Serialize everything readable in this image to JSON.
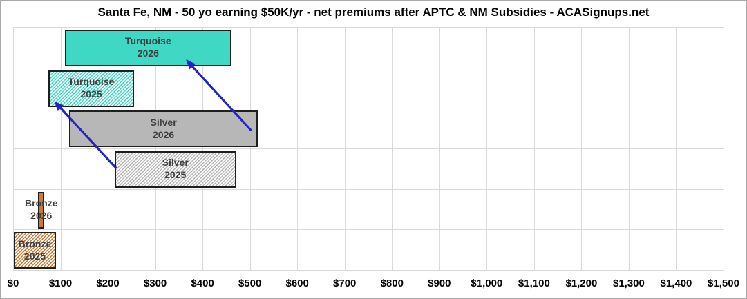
{
  "chart_data": {
    "type": "bar",
    "subtype": "horizontal-range-bars",
    "title": "Santa Fe, NM - 50 yo earning $50K/yr - net premiums after APTC & NM Subsidies - ACASignups.net",
    "grid": true,
    "legend": false,
    "x_axis": {
      "min": 0,
      "max": 1500,
      "tick_interval": 100,
      "tick_labels": [
        "$0",
        "$100",
        "$200",
        "$300",
        "$400",
        "$500",
        "$600",
        "$700",
        "$800",
        "$900",
        "$1,000",
        "$1,100",
        "$1,200",
        "$1,300",
        "$1,400",
        "$1,500"
      ]
    },
    "series": [
      {
        "id": "turquoise-2026",
        "label_lines": [
          "Turquoise",
          "2026"
        ],
        "min": 109,
        "max": 461,
        "fill": "#3ED8C4",
        "pattern": "solid"
      },
      {
        "id": "turquoise-2025",
        "label_lines": [
          "Turquoise",
          "2025"
        ],
        "min": 75,
        "max": 255,
        "fill": "#3ED8C4",
        "pattern": "hatch"
      },
      {
        "id": "silver-2026",
        "label_lines": [
          "Silver",
          "2026"
        ],
        "min": 118,
        "max": 517,
        "fill": "#B7B7B7",
        "pattern": "solid"
      },
      {
        "id": "silver-2025",
        "label_lines": [
          "Silver",
          "2025"
        ],
        "min": 214,
        "max": 471,
        "fill": "#B7B7B7",
        "pattern": "hatch"
      },
      {
        "id": "bronze-2026",
        "label_lines": [
          "Bronze",
          "2026"
        ],
        "min": 53,
        "max": 66,
        "fill": "#C97B35",
        "pattern": "solid"
      },
      {
        "id": "bronze-2025",
        "label_lines": [
          "Bronze",
          "2025"
        ],
        "min": 2,
        "max": 90,
        "fill": "#C97B35",
        "pattern": "hatch"
      }
    ],
    "annotations": [
      {
        "id": "arrow-silver-2026-to-turquoise-2026",
        "type": "arrow",
        "color": "#2323CC",
        "from": {
          "value": 503,
          "row": 2,
          "row_frac": 0.56
        },
        "to": {
          "value": 367,
          "row": 0,
          "row_frac": 0.83
        }
      },
      {
        "id": "arrow-silver-2025-to-turquoise-2025",
        "type": "arrow",
        "color": "#2323CC",
        "from": {
          "value": 218,
          "row": 3,
          "row_frac": 0.49
        },
        "to": {
          "value": 89,
          "row": 1,
          "row_frac": 0.86
        }
      }
    ],
    "colors": {
      "turquoise": "#3ED8C4",
      "silver": "#B7B7B7",
      "bronze": "#C97B35",
      "arrow": "#2323CC",
      "gridline": "#d9d9d9",
      "bar_border": "#1e1e1e",
      "bar_label_text": "#3f3f3f"
    }
  }
}
